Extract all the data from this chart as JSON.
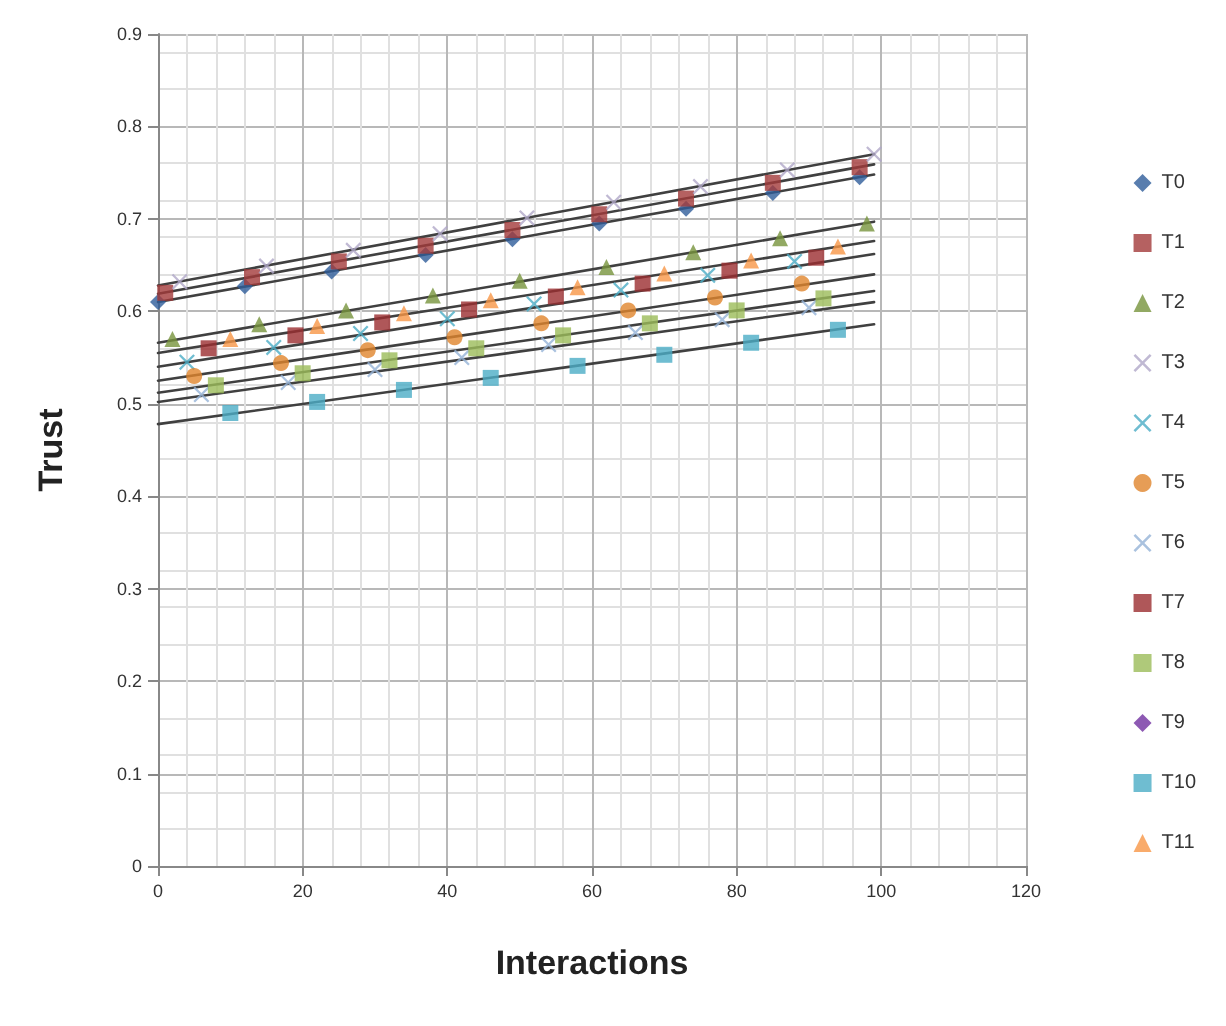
{
  "chart_data": {
    "type": "scatter",
    "xlabel": "Interactions",
    "ylabel": "Trust",
    "xlim": [
      0,
      120
    ],
    "xticks": [
      0,
      20,
      40,
      60,
      80,
      100,
      120
    ],
    "ylim": [
      0,
      0.9
    ],
    "yticks": [
      0,
      0.1,
      0.2,
      0.3,
      0.4,
      0.5,
      0.6,
      0.7,
      0.8,
      0.9
    ],
    "grid": true,
    "legend": "right",
    "series": [
      {
        "name": "T0",
        "color": "#2e5d9a",
        "marker": "diamond",
        "x": [
          0,
          12,
          24,
          37,
          49,
          61,
          73,
          85,
          97
        ],
        "values": [
          0.61,
          0.627,
          0.643,
          0.661,
          0.678,
          0.695,
          0.711,
          0.728,
          0.745
        ]
      },
      {
        "name": "T1",
        "color": "#a33a3a",
        "marker": "square",
        "x": [
          1,
          13,
          25,
          37,
          49,
          61,
          73,
          85,
          97
        ],
        "values": [
          0.62,
          0.637,
          0.654,
          0.671,
          0.688,
          0.705,
          0.722,
          0.739,
          0.756
        ]
      },
      {
        "name": "T2",
        "color": "#77933c",
        "marker": "triangle",
        "x": [
          2,
          14,
          26,
          38,
          50,
          62,
          74,
          86,
          98
        ],
        "values": [
          0.57,
          0.586,
          0.601,
          0.617,
          0.633,
          0.648,
          0.664,
          0.679,
          0.695
        ]
      },
      {
        "name": "T3",
        "color": "#b0a8c8",
        "marker": "cross",
        "x": [
          3,
          15,
          27,
          39,
          51,
          63,
          75,
          87,
          99
        ],
        "values": [
          0.632,
          0.649,
          0.666,
          0.684,
          0.701,
          0.718,
          0.735,
          0.753,
          0.77
        ]
      },
      {
        "name": "T4",
        "color": "#4bacc6",
        "marker": "cross",
        "x": [
          4,
          16,
          28,
          40,
          52,
          64,
          76,
          88
        ],
        "values": [
          0.545,
          0.561,
          0.576,
          0.592,
          0.608,
          0.623,
          0.639,
          0.654
        ]
      },
      {
        "name": "T5",
        "color": "#e0842c",
        "marker": "circle",
        "x": [
          5,
          17,
          29,
          41,
          53,
          65,
          77,
          89
        ],
        "values": [
          0.53,
          0.544,
          0.558,
          0.572,
          0.587,
          0.601,
          0.615,
          0.63
        ]
      },
      {
        "name": "T6",
        "color": "#95b3d7",
        "marker": "cross",
        "x": [
          6,
          18,
          30,
          42,
          54,
          66,
          78,
          90
        ],
        "values": [
          0.51,
          0.523,
          0.537,
          0.55,
          0.564,
          0.577,
          0.591,
          0.604
        ]
      },
      {
        "name": "T7",
        "color": "#9b2d30",
        "marker": "square",
        "x": [
          7,
          19,
          31,
          43,
          55,
          67,
          79,
          91
        ],
        "values": [
          0.56,
          0.574,
          0.588,
          0.602,
          0.616,
          0.63,
          0.644,
          0.658
        ]
      },
      {
        "name": "T8",
        "color": "#9bbb59",
        "marker": "square",
        "x": [
          8,
          20,
          32,
          44,
          56,
          68,
          80,
          92
        ],
        "values": [
          0.52,
          0.533,
          0.547,
          0.56,
          0.574,
          0.587,
          0.601,
          0.614
        ]
      },
      {
        "name": "T9",
        "color": "#7030a0",
        "marker": "diamond"
      },
      {
        "name": "T10",
        "color": "#4bacc6",
        "marker": "square",
        "x": [
          10,
          22,
          34,
          46,
          58,
          70,
          82,
          94
        ],
        "values": [
          0.49,
          0.502,
          0.515,
          0.528,
          0.541,
          0.553,
          0.566,
          0.58
        ]
      },
      {
        "name": "T11",
        "color": "#f79646",
        "marker": "triangle",
        "x": [
          10,
          22,
          34,
          46,
          58,
          70,
          82,
          94
        ],
        "values": [
          0.57,
          0.584,
          0.598,
          0.612,
          0.626,
          0.641,
          0.655,
          0.67
        ]
      },
      {
        "type": "line",
        "color": "#404040",
        "marker": "none",
        "x": [
          0,
          99
        ],
        "values": [
          0.61,
          0.748
        ]
      },
      {
        "type": "line",
        "color": "#404040",
        "marker": "none",
        "x": [
          0,
          99
        ],
        "values": [
          0.619,
          0.759
        ]
      },
      {
        "type": "line",
        "color": "#404040",
        "marker": "none",
        "x": [
          0,
          99
        ],
        "values": [
          0.628,
          0.77
        ]
      },
      {
        "type": "line",
        "color": "#404040",
        "marker": "none",
        "x": [
          0,
          99
        ],
        "values": [
          0.566,
          0.697
        ]
      },
      {
        "type": "line",
        "color": "#404040",
        "marker": "none",
        "x": [
          0,
          99
        ],
        "values": [
          0.555,
          0.676
        ]
      },
      {
        "type": "line",
        "color": "#404040",
        "marker": "none",
        "x": [
          0,
          99
        ],
        "values": [
          0.54,
          0.662
        ]
      },
      {
        "type": "line",
        "color": "#404040",
        "marker": "none",
        "x": [
          0,
          99
        ],
        "values": [
          0.525,
          0.64
        ]
      },
      {
        "type": "line",
        "color": "#404040",
        "marker": "none",
        "x": [
          0,
          99
        ],
        "values": [
          0.512,
          0.622
        ]
      },
      {
        "type": "line",
        "color": "#404040",
        "marker": "none",
        "x": [
          0,
          99
        ],
        "values": [
          0.502,
          0.61
        ]
      },
      {
        "type": "line",
        "color": "#404040",
        "marker": "none",
        "x": [
          0,
          99
        ],
        "values": [
          0.478,
          0.586
        ]
      }
    ]
  }
}
